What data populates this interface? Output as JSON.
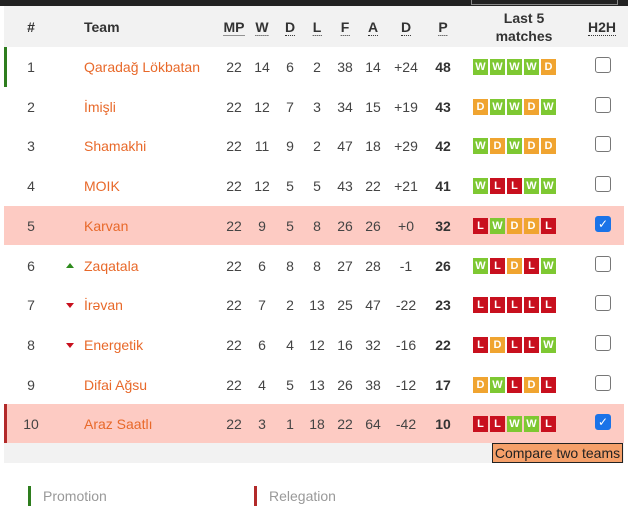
{
  "header": {
    "pos": "#",
    "team": "Team",
    "mp": "MP",
    "w": "W",
    "d": "D",
    "l": "L",
    "f": "F",
    "a": "A",
    "gd": "D",
    "p": "P",
    "last5": "Last 5 matches",
    "h2h": "H2H"
  },
  "colors": {
    "win": "#7ec832",
    "draw": "#f0a430",
    "loss": "#c8101e",
    "promotion": "#2e7d1e",
    "relegation": "#b22a2a",
    "team_link": "#e8692a",
    "highlight_row": "#fdcbc3"
  },
  "rows": [
    {
      "pos": "1",
      "team": "Qaradağ Lökbatan",
      "trend": "",
      "mp": "22",
      "w": "14",
      "d": "6",
      "l": "2",
      "f": "38",
      "a": "14",
      "gd": "+24",
      "p": "48",
      "form": [
        "W",
        "W",
        "W",
        "W",
        "D"
      ],
      "checked": false,
      "zone": "promotion"
    },
    {
      "pos": "2",
      "team": "İmişli",
      "trend": "",
      "mp": "22",
      "w": "12",
      "d": "7",
      "l": "3",
      "f": "34",
      "a": "15",
      "gd": "+19",
      "p": "43",
      "form": [
        "D",
        "W",
        "W",
        "D",
        "W"
      ],
      "checked": false,
      "zone": ""
    },
    {
      "pos": "3",
      "team": "Shamakhi",
      "trend": "",
      "mp": "22",
      "w": "11",
      "d": "9",
      "l": "2",
      "f": "47",
      "a": "18",
      "gd": "+29",
      "p": "42",
      "form": [
        "W",
        "D",
        "W",
        "D",
        "D"
      ],
      "checked": false,
      "zone": ""
    },
    {
      "pos": "4",
      "team": "MOIK",
      "trend": "",
      "mp": "22",
      "w": "12",
      "d": "5",
      "l": "5",
      "f": "43",
      "a": "22",
      "gd": "+21",
      "p": "41",
      "form": [
        "W",
        "L",
        "L",
        "W",
        "W"
      ],
      "checked": false,
      "zone": ""
    },
    {
      "pos": "5",
      "team": "Karvan",
      "trend": "",
      "mp": "22",
      "w": "9",
      "d": "5",
      "l": "8",
      "f": "26",
      "a": "26",
      "gd": "+0",
      "p": "32",
      "form": [
        "L",
        "W",
        "D",
        "D",
        "L"
      ],
      "checked": true,
      "zone": ""
    },
    {
      "pos": "6",
      "team": "Zaqatala",
      "trend": "up",
      "mp": "22",
      "w": "6",
      "d": "8",
      "l": "8",
      "f": "27",
      "a": "28",
      "gd": "-1",
      "p": "26",
      "form": [
        "W",
        "L",
        "D",
        "L",
        "W"
      ],
      "checked": false,
      "zone": ""
    },
    {
      "pos": "7",
      "team": "İrəvan",
      "trend": "down",
      "mp": "22",
      "w": "7",
      "d": "2",
      "l": "13",
      "f": "25",
      "a": "47",
      "gd": "-22",
      "p": "23",
      "form": [
        "L",
        "L",
        "L",
        "L",
        "L"
      ],
      "checked": false,
      "zone": ""
    },
    {
      "pos": "8",
      "team": "Energetik",
      "trend": "down",
      "mp": "22",
      "w": "6",
      "d": "4",
      "l": "12",
      "f": "16",
      "a": "32",
      "gd": "-16",
      "p": "22",
      "form": [
        "L",
        "D",
        "L",
        "L",
        "W"
      ],
      "checked": false,
      "zone": ""
    },
    {
      "pos": "9",
      "team": "Difai Ağsu",
      "trend": "",
      "mp": "22",
      "w": "4",
      "d": "5",
      "l": "13",
      "f": "26",
      "a": "38",
      "gd": "-12",
      "p": "17",
      "form": [
        "D",
        "W",
        "L",
        "D",
        "L"
      ],
      "checked": false,
      "zone": ""
    },
    {
      "pos": "10",
      "team": "Araz Saatlı",
      "trend": "",
      "mp": "22",
      "w": "3",
      "d": "1",
      "l": "18",
      "f": "22",
      "a": "64",
      "gd": "-42",
      "p": "10",
      "form": [
        "L",
        "L",
        "W",
        "W",
        "L"
      ],
      "checked": true,
      "zone": "relegation"
    }
  ],
  "compare_button": "Compare two teams",
  "legend": {
    "promotion": "Promotion",
    "relegation": "Relegation"
  }
}
